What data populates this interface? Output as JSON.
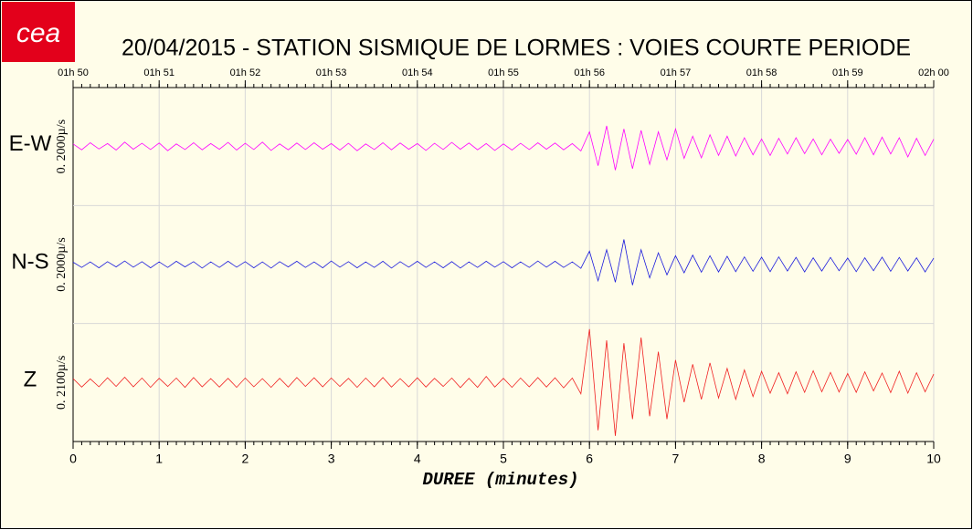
{
  "logo": "cea",
  "chart_data": {
    "type": "line",
    "title": "20/04/2015  -  STATION SISMIQUE DE LORMES : VOIES COURTE PERIODE",
    "xlabel": "DUREE (minutes)",
    "xlim": [
      0,
      10
    ],
    "xticks": [
      0,
      1,
      2,
      3,
      4,
      5,
      6,
      7,
      8,
      9,
      10
    ],
    "top_labels": [
      "01h 50",
      "01h 51",
      "01h 52",
      "01h 53",
      "01h 54",
      "01h 55",
      "01h 56",
      "01h 57",
      "01h 58",
      "01h 59",
      "02h 00"
    ],
    "grid": true,
    "x": [
      0,
      0.1,
      0.2,
      0.3,
      0.4,
      0.5,
      0.6,
      0.7,
      0.8,
      0.9,
      1,
      1.1,
      1.2,
      1.3,
      1.4,
      1.5,
      1.6,
      1.7,
      1.8,
      1.9,
      2,
      2.1,
      2.2,
      2.3,
      2.4,
      2.5,
      2.6,
      2.7,
      2.8,
      2.9,
      3,
      3.1,
      3.2,
      3.3,
      3.4,
      3.5,
      3.6,
      3.7,
      3.8,
      3.9,
      4,
      4.1,
      4.2,
      4.3,
      4.4,
      4.5,
      4.6,
      4.7,
      4.8,
      4.9,
      5,
      5.1,
      5.2,
      5.3,
      5.4,
      5.5,
      5.6,
      5.7,
      5.8,
      5.9,
      6,
      6.1,
      6.2,
      6.3,
      6.4,
      6.5,
      6.6,
      6.7,
      6.8,
      6.9,
      7,
      7.1,
      7.2,
      7.3,
      7.4,
      7.5,
      7.6,
      7.7,
      7.8,
      7.9,
      8,
      8.1,
      8.2,
      8.3,
      8.4,
      8.5,
      8.6,
      8.7,
      8.8,
      8.9,
      9,
      9.1,
      9.2,
      9.3,
      9.4,
      9.5,
      9.6,
      9.7,
      9.8,
      9.9,
      10
    ],
    "series": [
      {
        "name": "E-W",
        "color": "#ff00ff",
        "scale_label": "0. 2000µ/s",
        "ylim": [
          -2000,
          2000
        ],
        "values": [
          90,
          -110,
          130,
          -80,
          100,
          -120,
          150,
          -90,
          110,
          -100,
          120,
          -140,
          90,
          -100,
          130,
          -110,
          100,
          -90,
          140,
          -120,
          110,
          -100,
          150,
          -130,
          90,
          -110,
          120,
          -100,
          130,
          -90,
          100,
          -120,
          110,
          -140,
          90,
          -100,
          130,
          -110,
          120,
          -90,
          100,
          -130,
          110,
          -100,
          140,
          -90,
          120,
          -110,
          100,
          -130,
          90,
          -120,
          110,
          -100,
          130,
          -90,
          120,
          -110,
          100,
          -150,
          500,
          -650,
          700,
          -800,
          600,
          -750,
          550,
          -600,
          500,
          -450,
          600,
          -400,
          350,
          -380,
          400,
          -300,
          350,
          -320,
          300,
          -280,
          260,
          -300,
          280,
          -250,
          300,
          -240,
          260,
          -280,
          250,
          -230,
          240,
          -260,
          300,
          -280,
          320,
          -250,
          300,
          -350,
          280,
          -300,
          250
        ]
      },
      {
        "name": "N-S",
        "color": "#1a1adc",
        "scale_label": "0. 2000µ/s",
        "ylim": [
          -2000,
          2000
        ],
        "values": [
          80,
          -100,
          90,
          -110,
          100,
          -80,
          120,
          -90,
          100,
          -110,
          90,
          -100,
          110,
          -80,
          100,
          -120,
          90,
          -100,
          110,
          -90,
          100,
          -110,
          90,
          -120,
          100,
          -80,
          110,
          -100,
          90,
          -110,
          120,
          -90,
          100,
          -110,
          90,
          -100,
          110,
          -120,
          100,
          -90,
          110,
          -100,
          90,
          -110,
          100,
          -120,
          90,
          -100,
          110,
          -90,
          100,
          -110,
          90,
          -100,
          120,
          -90,
          110,
          -100,
          90,
          -130,
          450,
          -550,
          500,
          -600,
          850,
          -700,
          500,
          -450,
          400,
          -350,
          300,
          -280,
          320,
          -260,
          300,
          -250,
          280,
          -240,
          260,
          -230,
          250,
          -240,
          260,
          -220,
          240,
          -250,
          230,
          -220,
          240,
          -210,
          220,
          -240,
          230,
          -210,
          250,
          -230,
          240,
          -220,
          230,
          -250,
          220
        ]
      },
      {
        "name": "Z",
        "color": "#f02020",
        "scale_label": "0. 2100µ/s",
        "ylim": [
          -2100,
          2100
        ],
        "values": [
          140,
          -160,
          130,
          -150,
          170,
          -140,
          190,
          -150,
          160,
          -170,
          150,
          -140,
          160,
          -170,
          180,
          -150,
          140,
          -160,
          150,
          -170,
          160,
          -150,
          140,
          -170,
          150,
          -160,
          180,
          -140,
          170,
          -150,
          160,
          -140,
          150,
          -170,
          160,
          -150,
          180,
          -160,
          140,
          -150,
          170,
          -160,
          150,
          -140,
          160,
          -180,
          150,
          -170,
          220,
          -160,
          150,
          -170,
          160,
          -150,
          180,
          -160,
          170,
          -190,
          160,
          -400,
          1900,
          -1700,
          1500,
          -1900,
          1400,
          -1300,
          1600,
          -1200,
          1100,
          -1300,
          800,
          -700,
          650,
          -600,
          700,
          -550,
          500,
          -600,
          450,
          -500,
          400,
          -380,
          350,
          -400,
          380,
          -350,
          420,
          -330,
          360,
          -340,
          320,
          -350,
          380,
          -300,
          340,
          -360,
          400,
          -380,
          350,
          -330,
          300
        ]
      }
    ]
  }
}
